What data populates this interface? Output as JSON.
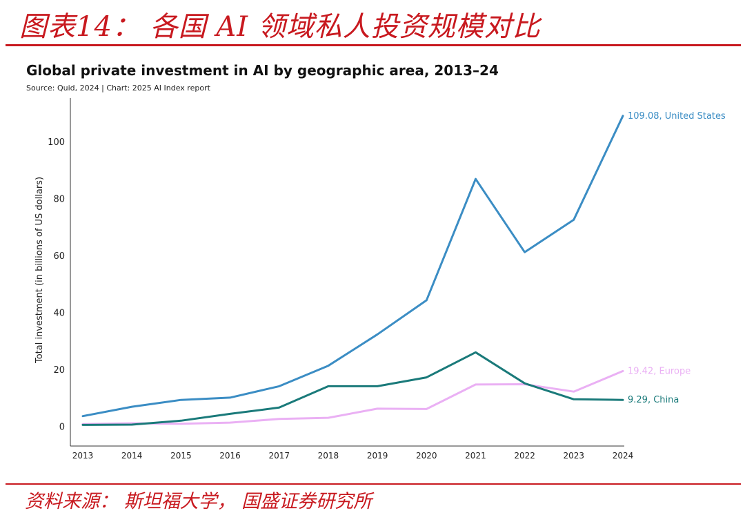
{
  "page": {
    "header_title": "图表14： 各国 AI 领域私人投资规模对比",
    "footer_source": "资料来源： 斯坦福大学， 国盛证券研究所"
  },
  "colors": {
    "accent": "#c8191f",
    "us": "#3b8dc4",
    "china": "#1a7a7a",
    "europe": "#eab0f4"
  },
  "chart_data": {
    "type": "line",
    "title": "Global private investment in AI by geographic area, 2013–24",
    "subtitle": "Source: Quid, 2024 | Chart: 2025 AI Index report",
    "ylabel": "Total investment (in billions of US dollars)",
    "xlabel": "",
    "x": [
      "2013",
      "2014",
      "2015",
      "2016",
      "2017",
      "2018",
      "2019",
      "2020",
      "2021",
      "2022",
      "2023",
      "2024"
    ],
    "ylim": [
      0,
      110
    ],
    "yticks": [
      0,
      20,
      40,
      60,
      80,
      100
    ],
    "grid": false,
    "series": [
      {
        "name": "United States",
        "color": "#3b8dc4",
        "end_label": "109.08, United States",
        "values": [
          3.6,
          6.9,
          9.3,
          10.1,
          14.1,
          21.3,
          32.3,
          44.3,
          86.9,
          61.2,
          72.6,
          109.08
        ]
      },
      {
        "name": "Europe",
        "color": "#eab0f4",
        "end_label": "19.42, Europe",
        "values": [
          0.8,
          1.1,
          0.9,
          1.3,
          2.6,
          3.0,
          6.2,
          6.1,
          14.7,
          14.8,
          12.2,
          19.42
        ]
      },
      {
        "name": "China",
        "color": "#1a7a7a",
        "end_label": "9.29, China",
        "values": [
          0.5,
          0.6,
          2.0,
          4.4,
          6.6,
          14.1,
          14.1,
          17.2,
          26.0,
          15.1,
          9.5,
          9.29
        ]
      }
    ]
  }
}
